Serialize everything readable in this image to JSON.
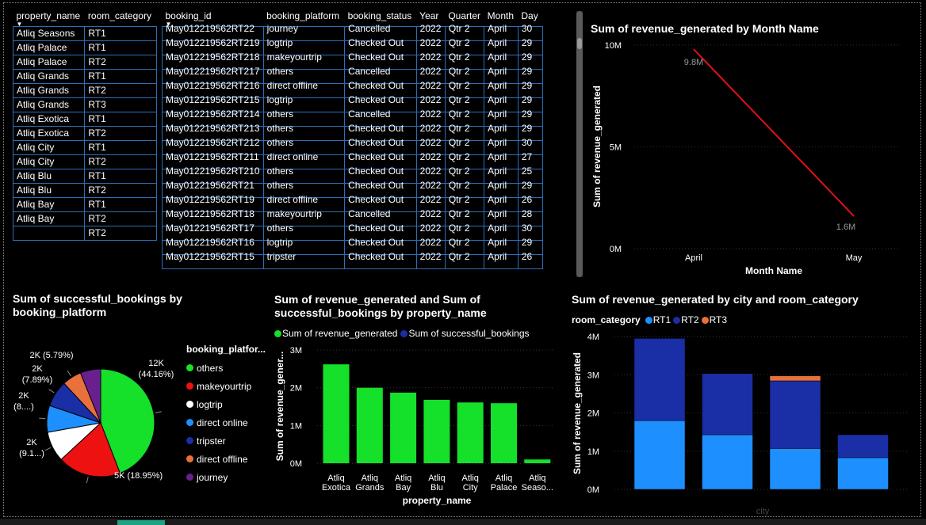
{
  "property_table": {
    "headers": [
      "property_name",
      "room_category"
    ],
    "rows": [
      [
        "Atliq Seasons",
        "RT1"
      ],
      [
        "Atliq Palace",
        "RT1"
      ],
      [
        "Atliq Palace",
        "RT2"
      ],
      [
        "Atliq Grands",
        "RT1"
      ],
      [
        "Atliq Grands",
        "RT2"
      ],
      [
        "Atliq Grands",
        "RT3"
      ],
      [
        "Atliq Exotica",
        "RT1"
      ],
      [
        "Atliq Exotica",
        "RT2"
      ],
      [
        "Atliq City",
        "RT1"
      ],
      [
        "Atliq City",
        "RT2"
      ],
      [
        "Atliq Blu",
        "RT1"
      ],
      [
        "Atliq Blu",
        "RT2"
      ],
      [
        "Atliq Bay",
        "RT1"
      ],
      [
        "Atliq Bay",
        "RT2"
      ],
      [
        "",
        "RT2"
      ]
    ]
  },
  "booking_table": {
    "headers": [
      "booking_id",
      "booking_platform",
      "booking_status",
      "Year",
      "Quarter",
      "Month",
      "Day"
    ],
    "rows": [
      [
        "May012219562RT22",
        "journey",
        "Cancelled",
        "2022",
        "Qtr 2",
        "April",
        "30"
      ],
      [
        "May012219562RT219",
        "logtrip",
        "Checked Out",
        "2022",
        "Qtr 2",
        "April",
        "29"
      ],
      [
        "May012219562RT218",
        "makeyourtrip",
        "Checked Out",
        "2022",
        "Qtr 2",
        "April",
        "29"
      ],
      [
        "May012219562RT217",
        "others",
        "Cancelled",
        "2022",
        "Qtr 2",
        "April",
        "29"
      ],
      [
        "May012219562RT216",
        "direct offline",
        "Checked Out",
        "2022",
        "Qtr 2",
        "April",
        "29"
      ],
      [
        "May012219562RT215",
        "logtrip",
        "Checked Out",
        "2022",
        "Qtr 2",
        "April",
        "29"
      ],
      [
        "May012219562RT214",
        "others",
        "Cancelled",
        "2022",
        "Qtr 2",
        "April",
        "29"
      ],
      [
        "May012219562RT213",
        "others",
        "Checked Out",
        "2022",
        "Qtr 2",
        "April",
        "29"
      ],
      [
        "May012219562RT212",
        "others",
        "Checked Out",
        "2022",
        "Qtr 2",
        "April",
        "30"
      ],
      [
        "May012219562RT211",
        "direct online",
        "Checked Out",
        "2022",
        "Qtr 2",
        "April",
        "27"
      ],
      [
        "May012219562RT210",
        "others",
        "Checked Out",
        "2022",
        "Qtr 2",
        "April",
        "25"
      ],
      [
        "May012219562RT21",
        "others",
        "Checked Out",
        "2022",
        "Qtr 2",
        "April",
        "29"
      ],
      [
        "May012219562RT19",
        "direct offline",
        "Checked Out",
        "2022",
        "Qtr 2",
        "April",
        "26"
      ],
      [
        "May012219562RT18",
        "makeyourtrip",
        "Cancelled",
        "2022",
        "Qtr 2",
        "April",
        "28"
      ],
      [
        "May012219562RT17",
        "others",
        "Checked Out",
        "2022",
        "Qtr 2",
        "April",
        "30"
      ],
      [
        "May012219562RT16",
        "logtrip",
        "Checked Out",
        "2022",
        "Qtr 2",
        "April",
        "29"
      ],
      [
        "May012219562RT15",
        "tripster",
        "Checked Out",
        "2022",
        "Qtr 2",
        "April",
        "26"
      ]
    ]
  },
  "chart_data": [
    {
      "id": "line",
      "type": "line",
      "title": "Sum of revenue_generated by Month Name",
      "xlabel": "Month Name",
      "ylabel": "Sum of revenue_generated",
      "categories": [
        "April",
        "May"
      ],
      "values": [
        9.8,
        1.6
      ],
      "data_labels": [
        "9.8M",
        "1.6M"
      ],
      "yticks": [
        "0M",
        "5M",
        "10M"
      ],
      "ylim": [
        0,
        10
      ],
      "color": "#e0101a"
    },
    {
      "id": "pie",
      "type": "pie",
      "title": "Sum of successful_bookings by booking_platform",
      "legend_title": "booking_platfor...",
      "slices": [
        {
          "name": "others",
          "pct": 44.16,
          "color": "#15e02a",
          "label": [
            "12K",
            "(44.16%)"
          ]
        },
        {
          "name": "makeyourtrip",
          "pct": 18.95,
          "color": "#ee1111",
          "label": [
            "5K (18.95%)"
          ]
        },
        {
          "name": "logtrip",
          "pct": 9.1,
          "color": "#ffffff",
          "label": [
            "2K",
            "(9.1...)"
          ]
        },
        {
          "name": "direct online",
          "pct": 8.0,
          "color": "#1e8fff",
          "label": [
            "2K",
            "(8....)"
          ]
        },
        {
          "name": "tripster",
          "pct": 7.89,
          "color": "#1a2ea6",
          "label": [
            "2K",
            "(7.89%)"
          ]
        },
        {
          "name": "direct offline",
          "pct": 5.79,
          "color": "#e8703a",
          "label": [
            "2K (5.79%)"
          ]
        },
        {
          "name": "journey",
          "pct": 6.11,
          "color": "#6a1f8f",
          "label": []
        }
      ]
    },
    {
      "id": "bar",
      "type": "bar",
      "title_lines": [
        "Sum of revenue_generated and Sum of",
        "successful_bookings by property_name"
      ],
      "legend": [
        {
          "name": "Sum of revenue_generated",
          "color": "#15e02a"
        },
        {
          "name": "Sum of successful_bookings",
          "color": "#1a2ea6"
        }
      ],
      "xlabel": "property_name",
      "ylabel": "Sum of revenue_gener...",
      "categories": [
        [
          "Atliq",
          "Exotica"
        ],
        [
          "Atliq",
          "Grands"
        ],
        [
          "Atliq",
          "Bay"
        ],
        [
          "Atliq",
          "Blu"
        ],
        [
          "Atliq",
          "City"
        ],
        [
          "Atliq",
          "Palace"
        ],
        [
          "Atliq",
          "Seaso..."
        ]
      ],
      "values": [
        2.62,
        2.0,
        1.87,
        1.68,
        1.61,
        1.59,
        0.1
      ],
      "yticks": [
        "0M",
        "1M",
        "2M",
        "3M"
      ],
      "ylim": [
        0,
        3
      ]
    },
    {
      "id": "stacked",
      "type": "bar",
      "title": "Sum of revenue_generated by city and room_category",
      "legend_title": "room_category",
      "legend": [
        {
          "name": "RT1",
          "color": "#1e8fff"
        },
        {
          "name": "RT2",
          "color": "#1a2ea6"
        },
        {
          "name": "RT3",
          "color": "#e8703a"
        }
      ],
      "xlabel": "city",
      "ylabel": "Sum of revenue_generated",
      "yticks": [
        "0M",
        "1M",
        "2M",
        "3M",
        "4M"
      ],
      "ylim": [
        0,
        4
      ],
      "series": [
        {
          "name": "RT1",
          "values": [
            1.8,
            1.43,
            1.07,
            0.83
          ]
        },
        {
          "name": "RT2",
          "values": [
            2.15,
            1.6,
            1.77,
            0.6
          ]
        },
        {
          "name": "RT3",
          "values": [
            0,
            0,
            0.13,
            0
          ]
        }
      ]
    }
  ]
}
